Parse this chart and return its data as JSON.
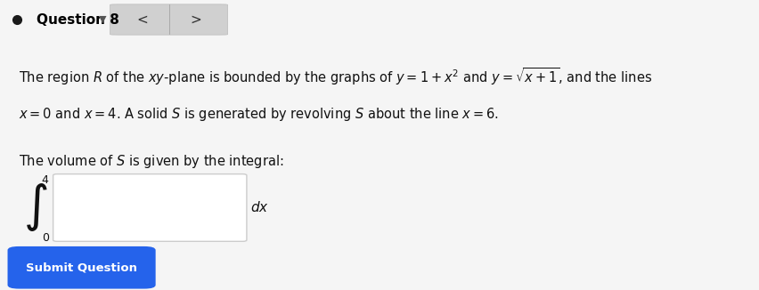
{
  "title_text": "Question 8",
  "header_bg": "#e8e8e8",
  "header_text_color": "#000000",
  "body_bg": "#f5f5f5",
  "paragraph1_line1": "The region $R$ of the $xy$-plane is bounded by the graphs of $y = 1 + x^2$ and $y = \\sqrt{x+1}$, and the lines",
  "paragraph1_line2": "$x = 0$ and $x = 4$. A solid $S$ is generated by revolving $S$ about the line $x = 6$.",
  "paragraph2": "The volume of $S$ is given by the integral:",
  "integral_lower": "0",
  "integral_upper": "4",
  "dx_label": "$dx$",
  "button_text": "Submit Question",
  "button_bg": "#2563eb",
  "button_text_color": "#ffffff",
  "nav_bg": "#d0d0d0",
  "dot_color": "#1a1a1a",
  "input_box_bg": "#ffffff",
  "input_box_border": "#cccccc",
  "divider_color": "#cccccc"
}
